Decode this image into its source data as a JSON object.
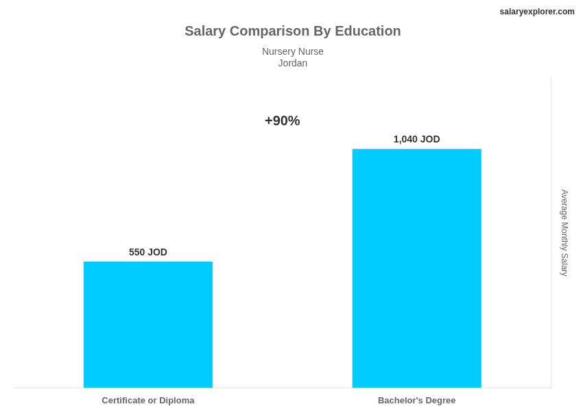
{
  "chart_data": {
    "type": "bar",
    "title": "Salary Comparison By Education",
    "subtitle": [
      "Nursery Nurse",
      "Jordan"
    ],
    "ylabel": "Average Monthly Salary",
    "categories": [
      "Certificate or Diploma",
      "Bachelor's Degree"
    ],
    "values": [
      550,
      1040
    ],
    "value_labels": [
      "550 JOD",
      "1,040 JOD"
    ],
    "data_labels": true,
    "color": "#00CCFF",
    "ylim": [
      0,
      1350
    ],
    "grid": false,
    "legend": false,
    "tick_labels": "x",
    "annotations": [
      "+90%",
      "salaryexplorer.com"
    ]
  }
}
